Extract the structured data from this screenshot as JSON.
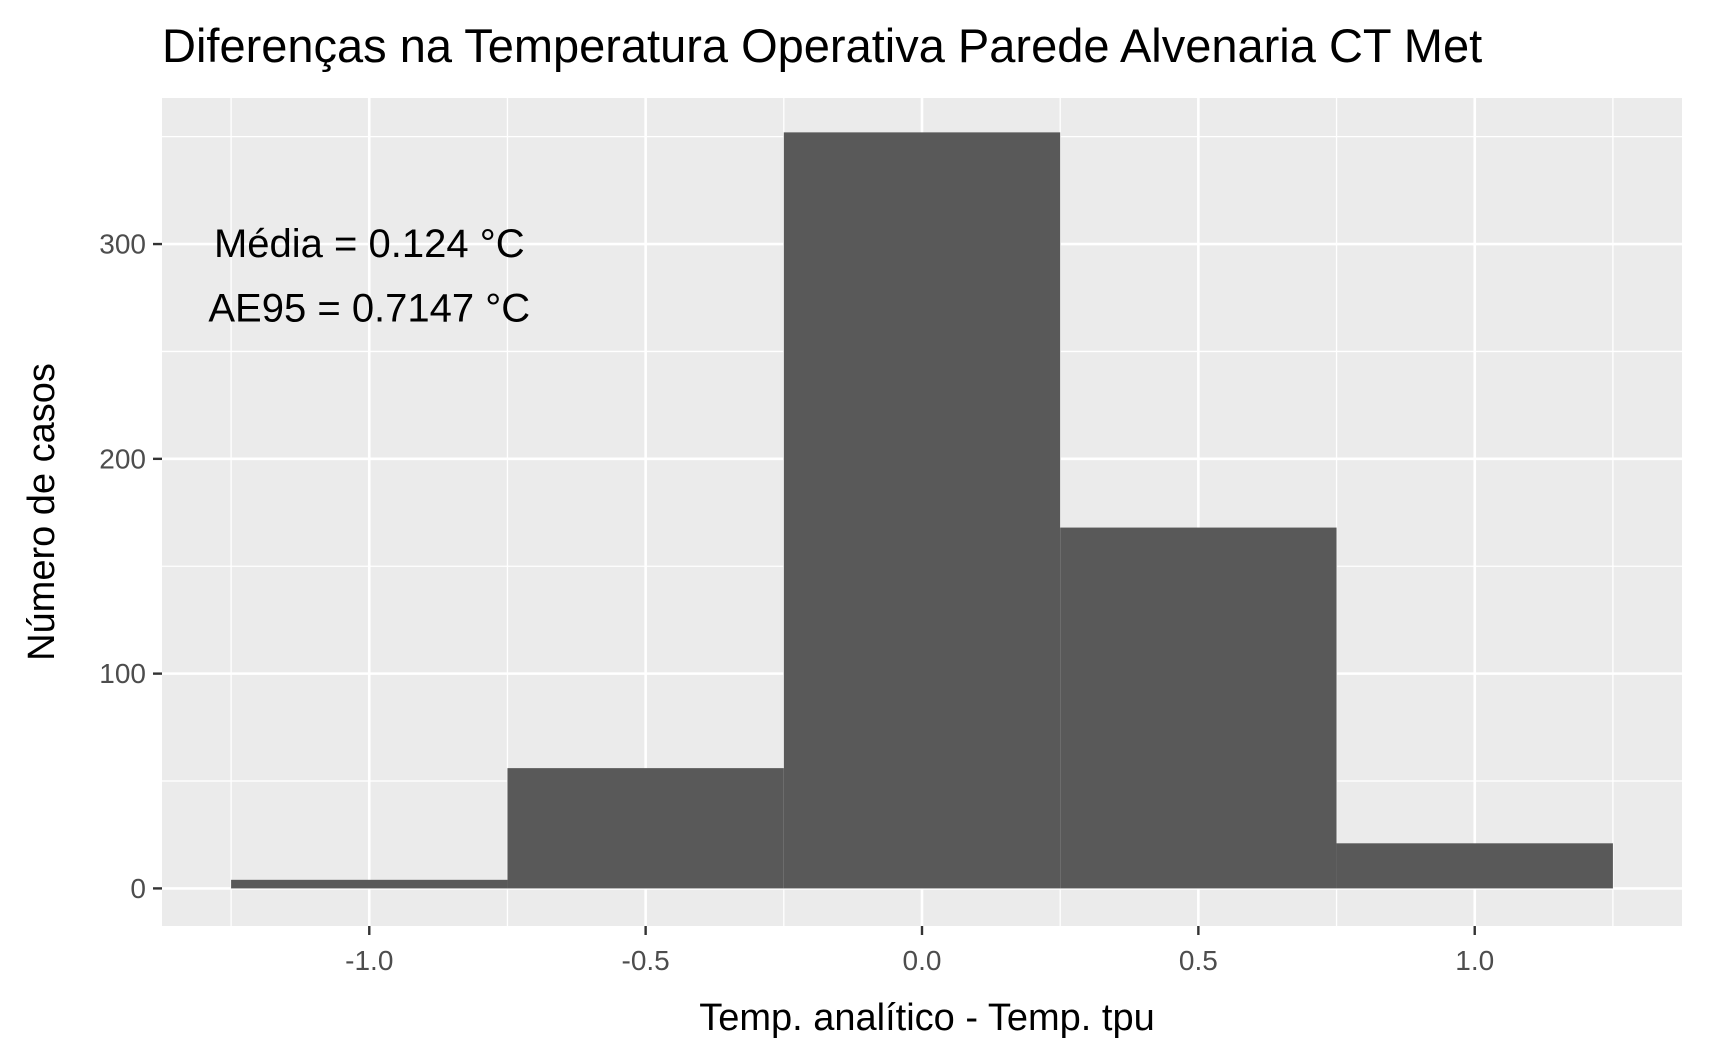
{
  "chart_data": {
    "type": "bar",
    "title": "Diferenças na Temperatura Operativa Parede Alvenaria CT Met",
    "xlabel": "Temp. analítico - Temp. tpu",
    "ylabel": "Número de casos",
    "xlim": [
      -1.375,
      1.375
    ],
    "ylim": [
      -17.5,
      368
    ],
    "x_ticks": [
      -1.0,
      -0.5,
      0.0,
      0.5,
      1.0
    ],
    "x_tick_labels": [
      "-1.0",
      "-0.5",
      "0.0",
      "0.5",
      "1.0"
    ],
    "y_ticks": [
      0,
      100,
      200,
      300
    ],
    "y_tick_labels": [
      "0",
      "100",
      "200",
      "300"
    ],
    "bin_width": 0.5,
    "bins": [
      {
        "x_start": -1.25,
        "x_end": -0.75,
        "count": 4
      },
      {
        "x_start": -0.75,
        "x_end": -0.25,
        "count": 56
      },
      {
        "x_start": -0.25,
        "x_end": 0.25,
        "count": 352
      },
      {
        "x_start": 0.25,
        "x_end": 0.75,
        "count": 168
      },
      {
        "x_start": 0.75,
        "x_end": 1.25,
        "count": 21
      }
    ],
    "annotations": [
      {
        "text": "Média = 0.124 °C",
        "x": -1.0,
        "y": 300
      },
      {
        "text": "AE95 = 0.7147 °C",
        "x": -1.0,
        "y": 270
      }
    ],
    "grid": true,
    "colors": {
      "panel": "#ebebeb",
      "grid": "#ffffff",
      "bar": "#595959"
    }
  }
}
